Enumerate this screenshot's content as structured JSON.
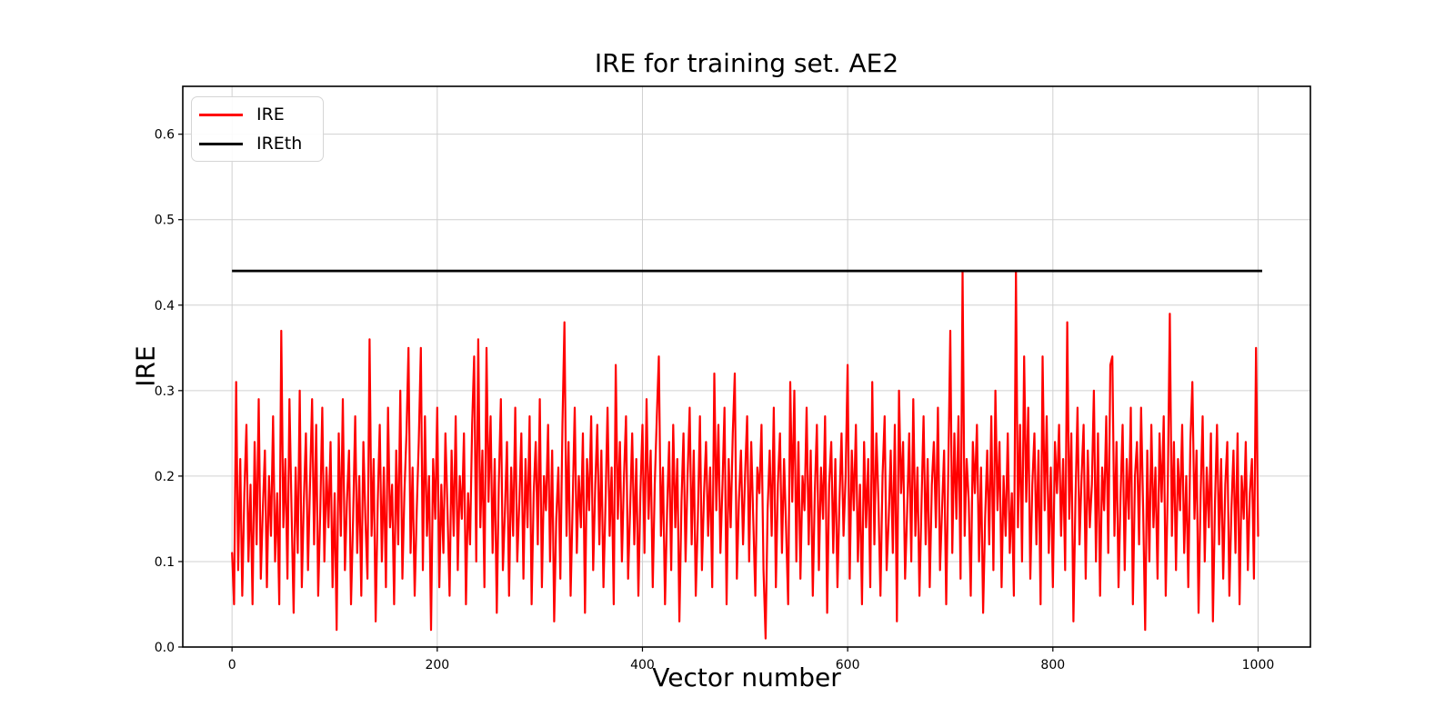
{
  "figure": {
    "background": "#ffffff"
  },
  "chart_data": {
    "type": "line",
    "title": "IRE for training set. AE2",
    "xlabel": "Vector number",
    "ylabel": "IRE",
    "xlim": [
      -48,
      1051
    ],
    "ylim": [
      0,
      0.656
    ],
    "xticks": [
      0,
      200,
      400,
      600,
      800,
      1000
    ],
    "yticks": [
      0.0,
      0.1,
      0.2,
      0.3,
      0.4,
      0.5,
      0.6
    ],
    "grid": true,
    "grid_color": "#d0d0d0",
    "spine_color": "#000000",
    "legend_position": "upper left",
    "series": [
      {
        "name": "IRE",
        "color": "#ff0000",
        "style": "noisy-line",
        "x_start": 0,
        "x_step": 2,
        "values": [
          0.11,
          0.05,
          0.31,
          0.09,
          0.22,
          0.06,
          0.18,
          0.26,
          0.1,
          0.19,
          0.05,
          0.24,
          0.12,
          0.29,
          0.08,
          0.16,
          0.23,
          0.07,
          0.2,
          0.13,
          0.27,
          0.1,
          0.18,
          0.05,
          0.37,
          0.14,
          0.22,
          0.08,
          0.29,
          0.16,
          0.04,
          0.21,
          0.11,
          0.3,
          0.07,
          0.17,
          0.25,
          0.09,
          0.19,
          0.29,
          0.12,
          0.26,
          0.06,
          0.16,
          0.28,
          0.1,
          0.21,
          0.14,
          0.24,
          0.07,
          0.18,
          0.02,
          0.25,
          0.13,
          0.29,
          0.09,
          0.17,
          0.23,
          0.05,
          0.15,
          0.27,
          0.11,
          0.2,
          0.06,
          0.24,
          0.15,
          0.08,
          0.36,
          0.13,
          0.22,
          0.03,
          0.17,
          0.26,
          0.1,
          0.21,
          0.07,
          0.28,
          0.14,
          0.19,
          0.05,
          0.23,
          0.12,
          0.3,
          0.08,
          0.18,
          0.25,
          0.35,
          0.11,
          0.21,
          0.06,
          0.16,
          0.24,
          0.35,
          0.09,
          0.27,
          0.13,
          0.2,
          0.02,
          0.22,
          0.15,
          0.28,
          0.07,
          0.19,
          0.11,
          0.25,
          0.16,
          0.06,
          0.23,
          0.13,
          0.27,
          0.09,
          0.2,
          0.15,
          0.25,
          0.05,
          0.18,
          0.12,
          0.26,
          0.34,
          0.1,
          0.36,
          0.14,
          0.23,
          0.07,
          0.35,
          0.17,
          0.27,
          0.11,
          0.22,
          0.04,
          0.19,
          0.29,
          0.09,
          0.16,
          0.24,
          0.06,
          0.21,
          0.13,
          0.28,
          0.1,
          0.17,
          0.25,
          0.08,
          0.22,
          0.14,
          0.27,
          0.05,
          0.18,
          0.24,
          0.12,
          0.29,
          0.07,
          0.2,
          0.16,
          0.26,
          0.1,
          0.23,
          0.03,
          0.15,
          0.21,
          0.08,
          0.26,
          0.38,
          0.13,
          0.24,
          0.06,
          0.17,
          0.28,
          0.11,
          0.2,
          0.14,
          0.25,
          0.04,
          0.22,
          0.16,
          0.27,
          0.09,
          0.19,
          0.26,
          0.12,
          0.23,
          0.07,
          0.17,
          0.28,
          0.13,
          0.21,
          0.05,
          0.33,
          0.15,
          0.24,
          0.1,
          0.2,
          0.27,
          0.08,
          0.16,
          0.25,
          0.12,
          0.22,
          0.06,
          0.18,
          0.26,
          0.11,
          0.29,
          0.15,
          0.23,
          0.07,
          0.19,
          0.27,
          0.34,
          0.13,
          0.21,
          0.05,
          0.16,
          0.24,
          0.09,
          0.26,
          0.14,
          0.22,
          0.03,
          0.17,
          0.25,
          0.1,
          0.2,
          0.28,
          0.12,
          0.23,
          0.06,
          0.15,
          0.27,
          0.09,
          0.18,
          0.24,
          0.13,
          0.21,
          0.07,
          0.32,
          0.16,
          0.26,
          0.11,
          0.19,
          0.28,
          0.05,
          0.22,
          0.14,
          0.25,
          0.32,
          0.08,
          0.17,
          0.23,
          0.12,
          0.2,
          0.27,
          0.1,
          0.24,
          0.15,
          0.06,
          0.21,
          0.18,
          0.26,
          0.09,
          0.01,
          0.16,
          0.23,
          0.13,
          0.28,
          0.07,
          0.19,
          0.25,
          0.11,
          0.22,
          0.14,
          0.05,
          0.31,
          0.17,
          0.3,
          0.1,
          0.24,
          0.08,
          0.2,
          0.16,
          0.28,
          0.12,
          0.23,
          0.06,
          0.18,
          0.26,
          0.09,
          0.21,
          0.15,
          0.27,
          0.04,
          0.19,
          0.24,
          0.11,
          0.22,
          0.07,
          0.17,
          0.25,
          0.13,
          0.2,
          0.33,
          0.08,
          0.23,
          0.16,
          0.26,
          0.1,
          0.19,
          0.05,
          0.24,
          0.14,
          0.22,
          0.07,
          0.31,
          0.12,
          0.25,
          0.17,
          0.06,
          0.2,
          0.27,
          0.09,
          0.15,
          0.23,
          0.11,
          0.26,
          0.03,
          0.3,
          0.18,
          0.24,
          0.08,
          0.16,
          0.25,
          0.1,
          0.29,
          0.13,
          0.21,
          0.06,
          0.17,
          0.27,
          0.12,
          0.22,
          0.07,
          0.19,
          0.24,
          0.14,
          0.28,
          0.09,
          0.16,
          0.23,
          0.05,
          0.2,
          0.37,
          0.11,
          0.25,
          0.15,
          0.27,
          0.08,
          0.44,
          0.13,
          0.22,
          0.17,
          0.06,
          0.24,
          0.18,
          0.26,
          0.1,
          0.21,
          0.04,
          0.15,
          0.23,
          0.12,
          0.27,
          0.09,
          0.3,
          0.16,
          0.24,
          0.07,
          0.2,
          0.13,
          0.25,
          0.11,
          0.18,
          0.06,
          0.44,
          0.14,
          0.26,
          0.1,
          0.34,
          0.17,
          0.28,
          0.08,
          0.19,
          0.25,
          0.12,
          0.23,
          0.05,
          0.34,
          0.16,
          0.27,
          0.11,
          0.21,
          0.07,
          0.24,
          0.18,
          0.26,
          0.13,
          0.22,
          0.09,
          0.38,
          0.15,
          0.25,
          0.03,
          0.17,
          0.28,
          0.12,
          0.2,
          0.26,
          0.08,
          0.23,
          0.14,
          0.19,
          0.3,
          0.1,
          0.25,
          0.06,
          0.21,
          0.16,
          0.27,
          0.11,
          0.33,
          0.34,
          0.13,
          0.24,
          0.07,
          0.18,
          0.26,
          0.09,
          0.22,
          0.15,
          0.28,
          0.05,
          0.2,
          0.24,
          0.12,
          0.28,
          0.16,
          0.02,
          0.23,
          0.1,
          0.26,
          0.14,
          0.21,
          0.08,
          0.25,
          0.17,
          0.27,
          0.06,
          0.19,
          0.39,
          0.13,
          0.24,
          0.09,
          0.22,
          0.16,
          0.26,
          0.11,
          0.2,
          0.07,
          0.24,
          0.31,
          0.15,
          0.23,
          0.04,
          0.18,
          0.27,
          0.1,
          0.21,
          0.14,
          0.25,
          0.03,
          0.17,
          0.26,
          0.12,
          0.22,
          0.08,
          0.19,
          0.24,
          0.06,
          0.16,
          0.23,
          0.11,
          0.25,
          0.05,
          0.2,
          0.15,
          0.24,
          0.09,
          0.18,
          0.22,
          0.08,
          0.35,
          0.13
        ]
      },
      {
        "name": "IREth",
        "color": "#000000",
        "style": "hline",
        "y": 0.44,
        "x_range": [
          0,
          1004
        ]
      }
    ]
  }
}
